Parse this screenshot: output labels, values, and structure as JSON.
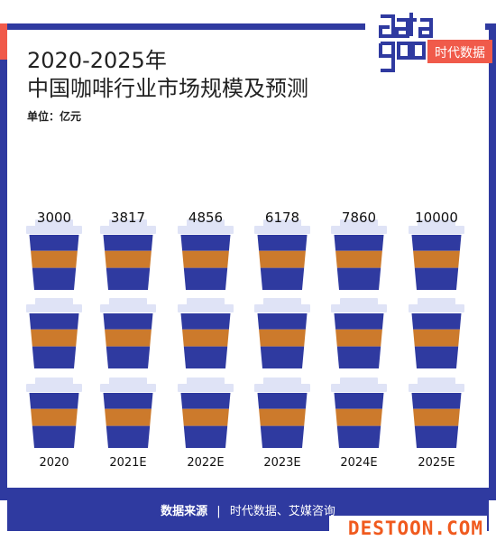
{
  "title_line1": "2020-2025年",
  "title_line2": "中国咖啡行业市场规模及预测",
  "unit": "单位：亿元",
  "logo": {
    "text": "时代数据"
  },
  "footer": {
    "label": "数据来源",
    "separator": "|",
    "source": "时代数据、艾媒咨询"
  },
  "watermark": "DESTOON.COM",
  "colors": {
    "blue": "#2f3aa0",
    "orange": "#cc7a2c",
    "lid": "#dfe3f6",
    "red": "#f05a4a"
  },
  "chart_data": {
    "type": "bar",
    "categories": [
      "2020",
      "2021E",
      "2022E",
      "2023E",
      "2024E",
      "2025E"
    ],
    "values": [
      3000,
      3817,
      4856,
      6178,
      7860,
      10000
    ],
    "value_labels": [
      "3000",
      "3817",
      "4856",
      "6178",
      "7860",
      "10000"
    ]
  }
}
